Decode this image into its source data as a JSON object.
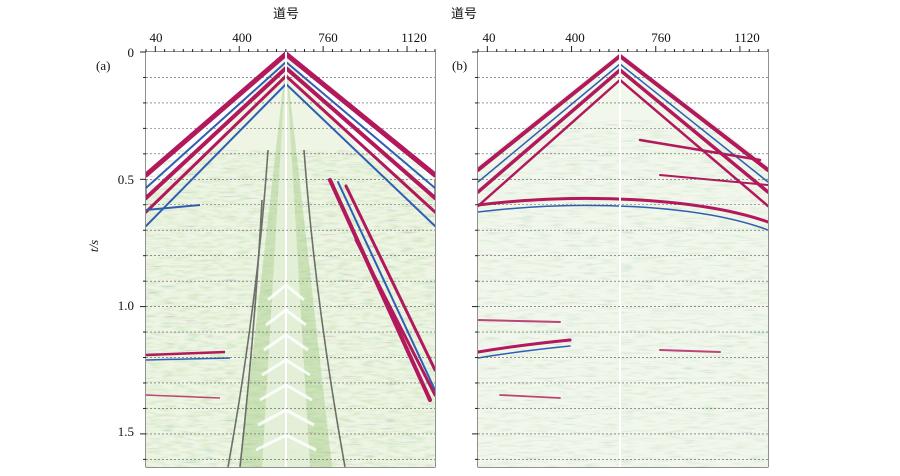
{
  "figure": {
    "panels": [
      {
        "id": "a",
        "label": "(a)",
        "xlabel": "道号",
        "xticks": [
          "40",
          "400",
          "760",
          "1120"
        ],
        "ylabel": "t/s",
        "yticks": [
          "0",
          "0.5",
          "1.0",
          "1.5"
        ]
      },
      {
        "id": "b",
        "label": "(b)",
        "xlabel": "道号",
        "xticks": [
          "40",
          "400",
          "760",
          "1120"
        ]
      }
    ]
  },
  "chart_data": [
    {
      "type": "heatmap",
      "title": "",
      "xlabel": "道号",
      "ylabel": "t/s",
      "x_ticks": [
        40,
        400,
        760,
        1120
      ],
      "y_ticks": [
        0,
        0.5,
        1.0,
        1.5
      ],
      "xlim": [
        0,
        1240
      ],
      "ylim": [
        0,
        1.63
      ],
      "grid": "horizontal dashed every 0.1 s",
      "colors": {
        "positive": "#b2185b",
        "negative": "#2f5fb3",
        "noise_green": "#8fbf6a",
        "background": "#ffffff"
      }
    },
    {
      "type": "heatmap",
      "title": "",
      "xlabel": "道号",
      "x_ticks": [
        40,
        400,
        760,
        1120
      ],
      "xlim": [
        0,
        1240
      ],
      "ylim": [
        0,
        1.63
      ],
      "grid": "horizontal dashed every 0.1 s",
      "colors": {
        "positive": "#b2185b",
        "negative": "#2f5fb3",
        "noise_green": "#8fbf6a",
        "background": "#ffffff"
      }
    }
  ]
}
